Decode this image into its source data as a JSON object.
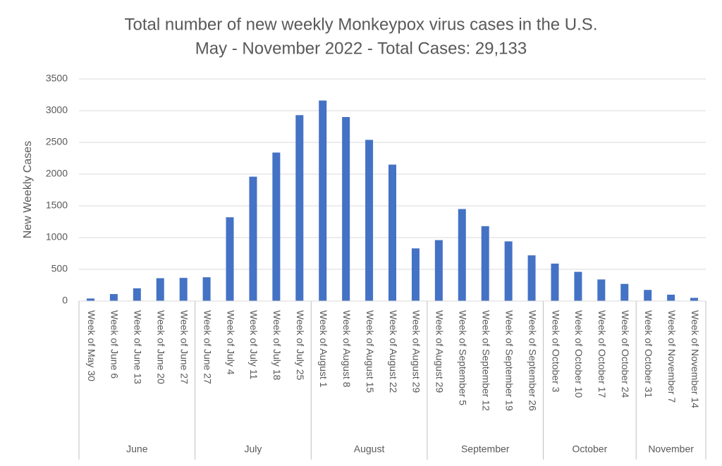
{
  "chart_data": {
    "type": "bar",
    "title": "Total number of new weekly Monkeypox virus cases in the U.S.",
    "subtitle": "May - November 2022 - Total Cases: 29,133",
    "y_label": "New Weekly Cases",
    "color": "#4472c4",
    "grid": true,
    "ylim": [
      0,
      3500
    ],
    "yticks": [
      0,
      500,
      1000,
      1500,
      2000,
      2500,
      3000,
      3500
    ],
    "groups": [
      {
        "name": "June",
        "categories": [
          "Week of May 30",
          "Week of June 6",
          "Week of June 13",
          "Week of June 20",
          "Week of June 27"
        ],
        "values": [
          40,
          110,
          200,
          360,
          365
        ]
      },
      {
        "name": "July",
        "categories": [
          "Week of June 27",
          "Week of July 4",
          "Week of July 11",
          "Week of July 18",
          "Week of July 25"
        ],
        "values": [
          375,
          1320,
          1960,
          2340,
          2930
        ]
      },
      {
        "name": "August",
        "categories": [
          "Week of August 1",
          "Week of August 8",
          "Week of August 15",
          "Week of August 22",
          "Week of August 29"
        ],
        "values": [
          3160,
          2900,
          2540,
          2150,
          830
        ]
      },
      {
        "name": "September",
        "categories": [
          "Week of August 29",
          "Week of September 5",
          "Week of September 12",
          "Week of September 19",
          "Week of September 26"
        ],
        "values": [
          960,
          1450,
          1180,
          940,
          720
        ]
      },
      {
        "name": "October",
        "categories": [
          "Week of October 3",
          "Week of October 10",
          "Week of October 17",
          "Week of October 24"
        ],
        "values": [
          590,
          460,
          340,
          270
        ]
      },
      {
        "name": "November",
        "categories": [
          "Week of October 31",
          "Week of November 7",
          "Week of November 14"
        ],
        "values": [
          175,
          100,
          50
        ]
      }
    ]
  }
}
